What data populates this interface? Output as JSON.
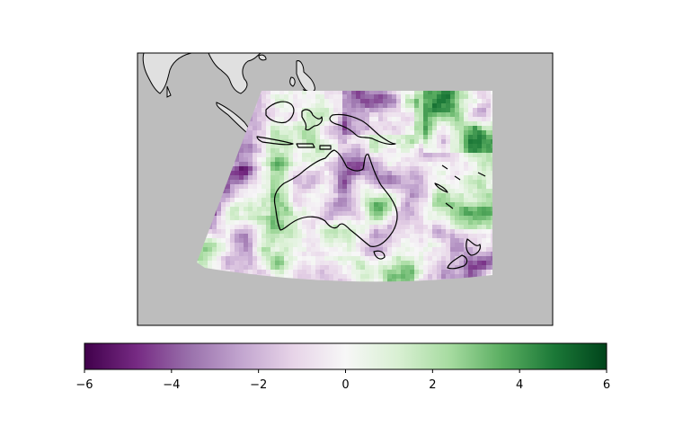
{
  "map": {
    "background_color": "#bdbdbd",
    "land_outside_color": "#e0e0e0",
    "coastline_color": "#000000",
    "regions_depicted": [
      "Australia",
      "Indonesia",
      "New Guinea",
      "New Zealand",
      "Southeast Asia"
    ]
  },
  "colorbar": {
    "colormap": "PRGn",
    "colors": [
      "#40004b",
      "#762a83",
      "#9970ab",
      "#c2a5cf",
      "#e7d4e8",
      "#f7f7f7",
      "#d9f0d3",
      "#a6dba0",
      "#5aae61",
      "#1b7837",
      "#00441b"
    ],
    "min": -6,
    "max": 6,
    "ticks": [
      {
        "value": -6,
        "label": "−6"
      },
      {
        "value": -4,
        "label": "−4"
      },
      {
        "value": -2,
        "label": "−2"
      },
      {
        "value": 0,
        "label": "0"
      },
      {
        "value": 2,
        "label": "2"
      },
      {
        "value": 4,
        "label": "4"
      },
      {
        "value": 6,
        "label": "6"
      }
    ]
  }
}
